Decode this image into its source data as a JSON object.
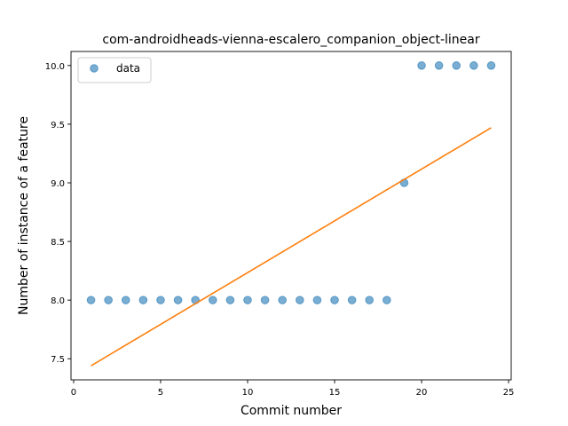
{
  "chart_data": {
    "type": "scatter",
    "title": "com-androidheads-vienna-escalero_companion_object-linear",
    "xlabel": "Commit number",
    "ylabel": "Number of instance of a feature",
    "xlim": [
      -0.15,
      25.15
    ],
    "ylim": [
      7.32,
      10.12
    ],
    "xticks": [
      0,
      5,
      10,
      15,
      20,
      25
    ],
    "yticks": [
      7.5,
      8.0,
      8.5,
      9.0,
      9.5,
      10.0
    ],
    "legend_position": "top-left",
    "grid": false,
    "series": [
      {
        "name": "data",
        "type": "scatter",
        "color": "#1f77b4",
        "x": [
          1,
          2,
          3,
          4,
          5,
          6,
          7,
          8,
          9,
          10,
          11,
          12,
          13,
          14,
          15,
          16,
          17,
          18,
          19,
          20,
          21,
          22,
          23,
          24
        ],
        "y": [
          8,
          8,
          8,
          8,
          8,
          8,
          8,
          8,
          8,
          8,
          8,
          8,
          8,
          8,
          8,
          8,
          8,
          8,
          9,
          10,
          10,
          10,
          10,
          10
        ]
      },
      {
        "type": "line",
        "color": "#ff7f0e",
        "x": [
          1,
          24
        ],
        "y": [
          7.44,
          9.47
        ]
      }
    ]
  }
}
